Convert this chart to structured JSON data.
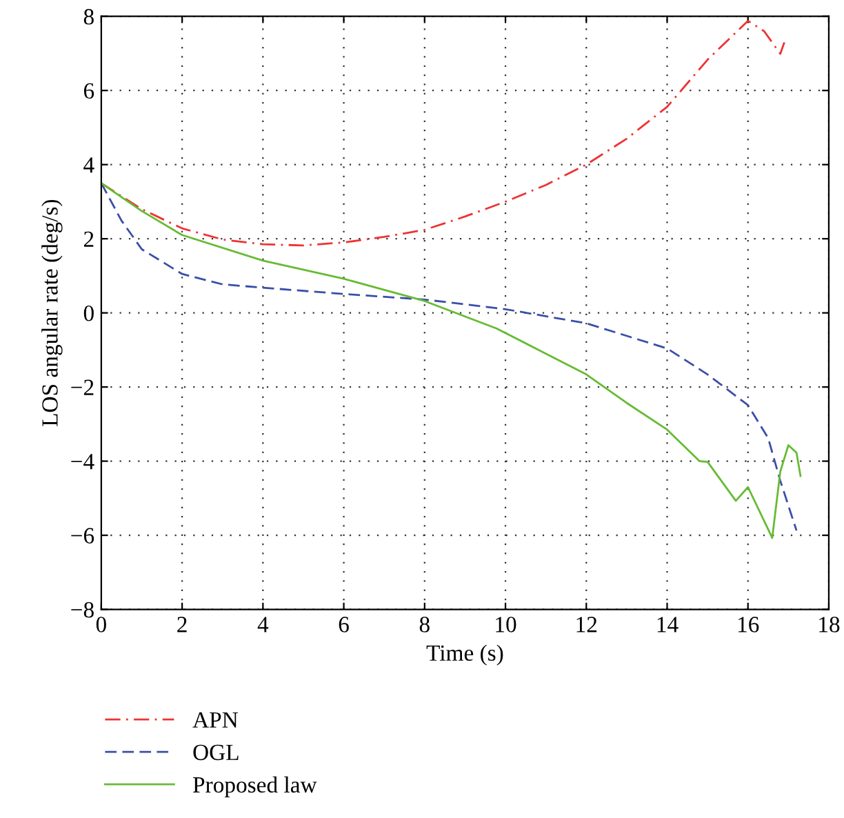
{
  "chart_data": {
    "type": "line",
    "xlabel": "Time (s)",
    "ylabel": "LOS angular rate (deg/s)",
    "xlim": [
      0,
      18
    ],
    "ylim": [
      -8,
      8
    ],
    "xticks": [
      0,
      2,
      4,
      6,
      8,
      10,
      12,
      14,
      16,
      18
    ],
    "yticks": [
      -8,
      -6,
      -4,
      -2,
      0,
      2,
      4,
      6,
      8
    ],
    "grid": true,
    "legend": "bottom left",
    "series": [
      {
        "name": "APN",
        "color": "#ee3333",
        "line_style": "dashdot",
        "x": [
          0,
          1,
          2,
          3,
          4,
          5,
          6,
          7,
          8,
          9,
          10,
          11,
          12,
          13,
          14,
          15,
          16,
          16.4,
          16.8,
          16.9
        ],
        "values": [
          3.5,
          2.8,
          2.28,
          1.98,
          1.85,
          1.82,
          1.9,
          2.05,
          2.24,
          2.6,
          3.0,
          3.45,
          4.0,
          4.7,
          5.56,
          6.83,
          7.88,
          7.6,
          6.99,
          7.3
        ]
      },
      {
        "name": "OGL",
        "color": "#3a4fa8",
        "line_style": "dashed",
        "x": [
          0,
          0.5,
          1,
          2,
          3,
          4,
          6,
          8,
          10,
          12,
          14,
          15,
          16,
          16.5,
          16.8,
          17.2
        ],
        "values": [
          3.5,
          2.49,
          1.72,
          1.05,
          0.77,
          0.68,
          0.51,
          0.36,
          0.1,
          -0.28,
          -0.96,
          -1.66,
          -2.49,
          -3.38,
          -4.53,
          -5.87
        ]
      },
      {
        "name": "Proposed law",
        "color": "#66bb33",
        "line_style": "solid",
        "x": [
          0,
          1,
          2,
          4,
          6,
          8,
          9.78,
          12,
          13,
          14,
          14.8,
          15,
          15.7,
          16,
          16.6,
          16.8,
          17,
          17.2,
          17.3
        ],
        "values": [
          3.5,
          2.75,
          2.1,
          1.41,
          0.92,
          0.32,
          -0.42,
          -1.66,
          -2.43,
          -3.15,
          -4.0,
          -4.02,
          -5.07,
          -4.7,
          -6.07,
          -4.28,
          -3.57,
          -3.77,
          -4.4
        ]
      }
    ]
  }
}
